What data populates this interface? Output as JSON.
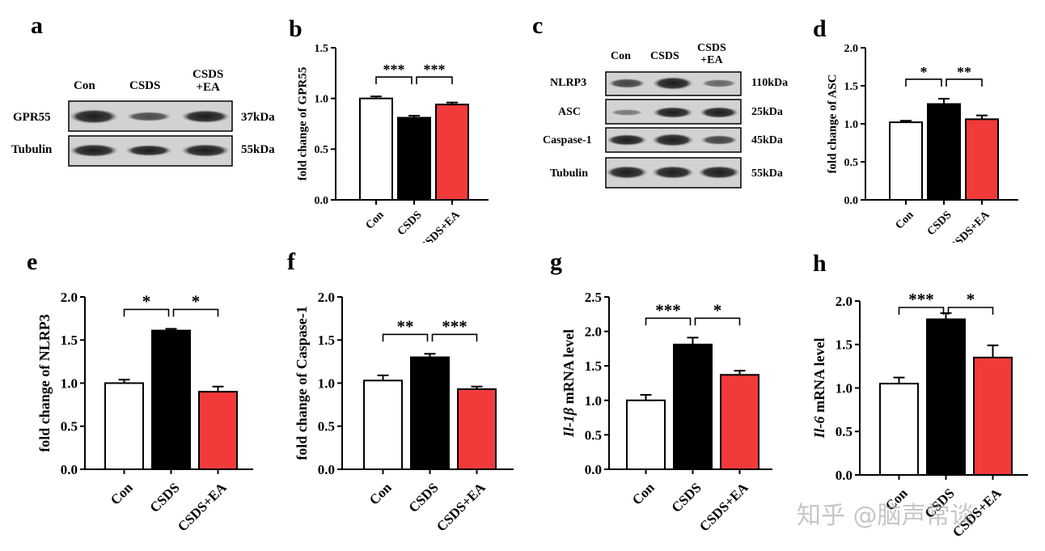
{
  "panels": {
    "a": {
      "letter": "a",
      "lanes": [
        "Con",
        "CSDS",
        "CSDS\n+EA"
      ],
      "rows": [
        {
          "name": "GPR55",
          "kda": "37kDa"
        },
        {
          "name": "Tubulin",
          "kda": "55kDa"
        }
      ]
    },
    "c": {
      "letter": "c",
      "lanes": [
        "Con",
        "CSDS",
        "CSDS\n+EA"
      ],
      "rows": [
        {
          "name": "NLRP3",
          "kda": "110kDa"
        },
        {
          "name": "ASC",
          "kda": "25kDa"
        },
        {
          "name": "Caspase-1",
          "kda": "45kDa"
        },
        {
          "name": "Tubulin",
          "kda": "55kDa"
        }
      ]
    }
  },
  "chart_data": [
    {
      "id": "b",
      "letter": "b",
      "type": "bar",
      "categories": [
        "Con",
        "CSDS",
        "CSDS+EA"
      ],
      "values": [
        1.0,
        0.81,
        0.94
      ],
      "errors": [
        0.02,
        0.02,
        0.02
      ],
      "ylabel": "fold change of GPR55",
      "ylabel_italic": "",
      "ylim": [
        0,
        1.5
      ],
      "ticks": [
        "0.0",
        "0.5",
        "1.0",
        "1.5"
      ],
      "significance": [
        "***",
        "***"
      ]
    },
    {
      "id": "d",
      "letter": "d",
      "type": "bar",
      "categories": [
        "Con",
        "CSDS",
        "CSDS+EA"
      ],
      "values": [
        1.02,
        1.26,
        1.06
      ],
      "errors": [
        0.02,
        0.07,
        0.05
      ],
      "ylabel": "fold change of ASC",
      "ylabel_italic": "",
      "ylim": [
        0,
        2.0
      ],
      "ticks": [
        "0.0",
        "0.5",
        "1.0",
        "1.5",
        "2.0"
      ],
      "significance": [
        "*",
        "**"
      ]
    },
    {
      "id": "e",
      "letter": "e",
      "type": "bar",
      "categories": [
        "Con",
        "CSDS",
        "CSDS+EA"
      ],
      "values": [
        1.0,
        1.61,
        0.9
      ],
      "errors": [
        0.04,
        0.02,
        0.06
      ],
      "ylabel": "fold change of NLRP3",
      "ylabel_italic": "",
      "ylim": [
        0,
        2.0
      ],
      "ticks": [
        "0.0",
        "0.5",
        "1.0",
        "1.5",
        "2.0"
      ],
      "significance": [
        "*",
        "*"
      ]
    },
    {
      "id": "f",
      "letter": "f",
      "type": "bar",
      "categories": [
        "Con",
        "CSDS",
        "CSDS+EA"
      ],
      "values": [
        1.03,
        1.3,
        0.93
      ],
      "errors": [
        0.06,
        0.04,
        0.03
      ],
      "ylabel": "fold change of Caspase-1",
      "ylabel_italic": "",
      "ylim": [
        0,
        2.0
      ],
      "ticks": [
        "0.0",
        "0.5",
        "1.0",
        "1.5",
        "2.0"
      ],
      "significance": [
        "**",
        "***"
      ]
    },
    {
      "id": "g",
      "letter": "g",
      "type": "bar",
      "categories": [
        "Con",
        "CSDS",
        "CSDS+EA"
      ],
      "values": [
        1.0,
        1.81,
        1.37
      ],
      "errors": [
        0.08,
        0.1,
        0.06
      ],
      "ylabel": " mRNA level",
      "ylabel_italic": "Il-1β",
      "ylim": [
        0,
        2.5
      ],
      "ticks": [
        "0.0",
        "0.5",
        "1.0",
        "1.5",
        "2.0",
        "2.5"
      ],
      "significance": [
        "***",
        "*"
      ]
    },
    {
      "id": "h",
      "letter": "h",
      "type": "bar",
      "categories": [
        "Con",
        "CSDS",
        "CSDS+EA"
      ],
      "values": [
        1.05,
        1.79,
        1.35
      ],
      "errors": [
        0.07,
        0.07,
        0.14
      ],
      "ylabel": " mRNA level",
      "ylabel_italic": "Il-6",
      "ylim": [
        0,
        2.0
      ],
      "ticks": [
        "0.0",
        "0.5",
        "1.0",
        "1.5",
        "2.0"
      ],
      "significance": [
        "***",
        "*"
      ]
    }
  ],
  "colors": {
    "con": "#ffffff",
    "csds": "#000000",
    "csds_ea": "#f23a3a"
  },
  "watermark": "知乎 @脑声常谈"
}
